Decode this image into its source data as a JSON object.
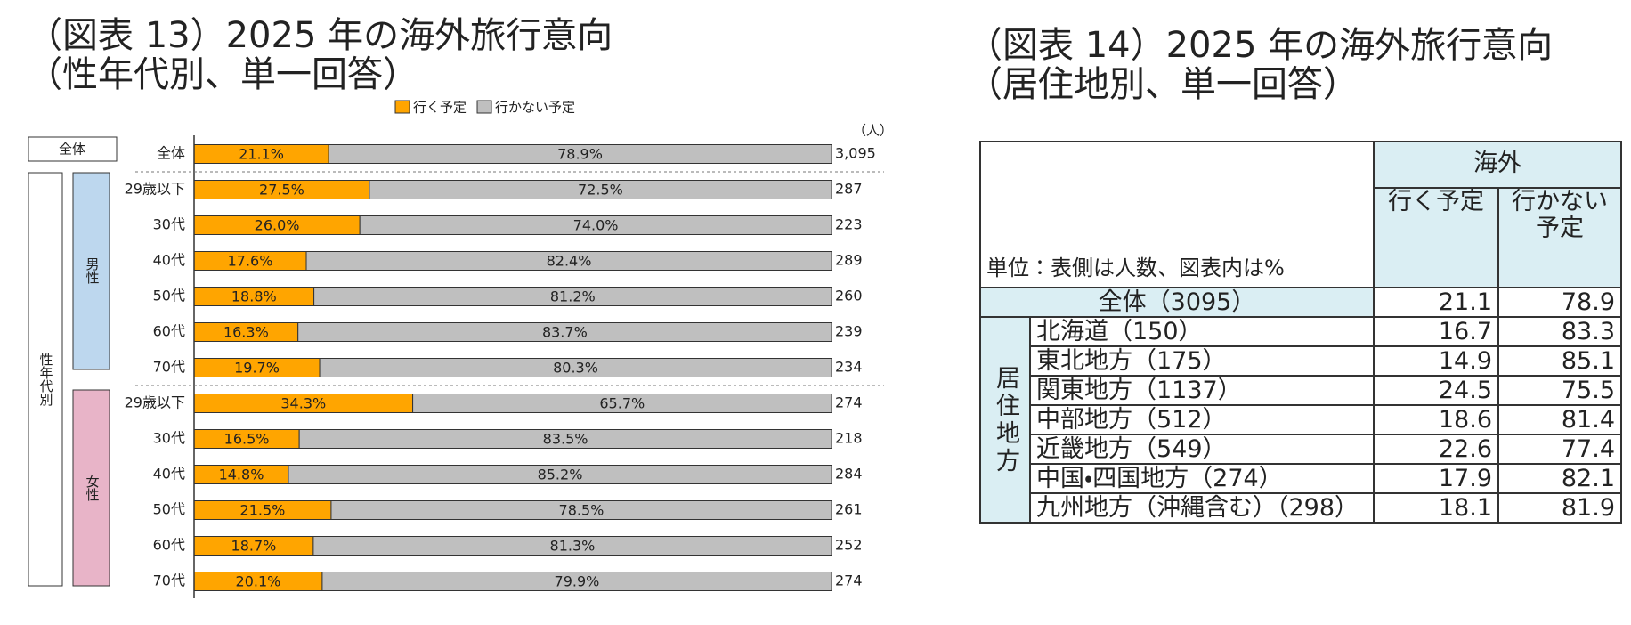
{
  "chart_data": {
    "type": "stacked-barh",
    "title": "（図表 13）2025 年の海外旅行意向",
    "subtitle": "（性年代別、単一回答）",
    "categories": [
      "全体",
      "29歳以下",
      "30代",
      "40代",
      "50代",
      "60代",
      "70代",
      "29歳以下",
      "30代",
      "40代",
      "50代",
      "60代",
      "70代"
    ],
    "series": [
      {
        "name": "行く予定",
        "color": "#ffa500",
        "values": [
          21.1,
          27.5,
          26.0,
          17.6,
          18.8,
          16.3,
          19.7,
          34.3,
          16.5,
          14.8,
          21.5,
          18.7,
          20.1
        ],
        "value_labels": [
          "21.1%",
          "27.5%",
          "26.0%",
          "17.6%",
          "18.8%",
          "16.3%",
          "19.7%",
          "34.3%",
          "16.5%",
          "14.8%",
          "21.5%",
          "18.7%",
          "20.1%"
        ]
      },
      {
        "name": "行かない予定",
        "color": "#bfbfbf",
        "values": [
          78.9,
          72.5,
          74.0,
          82.4,
          81.2,
          83.7,
          80.3,
          65.7,
          83.5,
          85.2,
          78.5,
          81.3,
          79.9
        ],
        "value_labels": [
          "78.9%",
          "72.5%",
          "74.0%",
          "82.4%",
          "81.2%",
          "83.7%",
          "80.3%",
          "65.7%",
          "83.5%",
          "85.2%",
          "78.5%",
          "81.3%",
          "79.9%"
        ]
      }
    ],
    "xlim": [
      0,
      100
    ],
    "counts_unit": "（人）",
    "counts": [
      {
        "value": 3095,
        "label": "3,095"
      },
      287,
      223,
      289,
      260,
      239,
      234,
      274,
      218,
      284,
      261,
      252,
      274
    ],
    "groups": [
      "全体",
      "男性",
      "女性"
    ],
    "outer_group": "性年代別",
    "legend": "top"
  },
  "table": {
    "title": "（図表 14）2025 年の海外旅行意向",
    "subtitle": "（居住地別、単一回答）",
    "unit_note": "単位：表側は人数、図表内は%",
    "group_header": "海外",
    "columns": [
      "行く予定",
      "行かない予定"
    ],
    "total_row": [
      "全体（3095）",
      21.1,
      78.9
    ],
    "region_group": "居住地方",
    "rows": [
      [
        "北海道（150）",
        16.7,
        83.3
      ],
      [
        "東北地方（175）",
        14.9,
        85.1
      ],
      [
        "関東地方（1137）",
        24.5,
        75.5
      ],
      [
        "中部地方（512）",
        18.6,
        81.4
      ],
      [
        "近畿地方（549）",
        22.6,
        77.4
      ],
      [
        "中国・四国地方（274）",
        17.9,
        82.1
      ],
      [
        "九州地方（沖縄含む）（298）",
        18.1,
        81.9
      ]
    ]
  }
}
